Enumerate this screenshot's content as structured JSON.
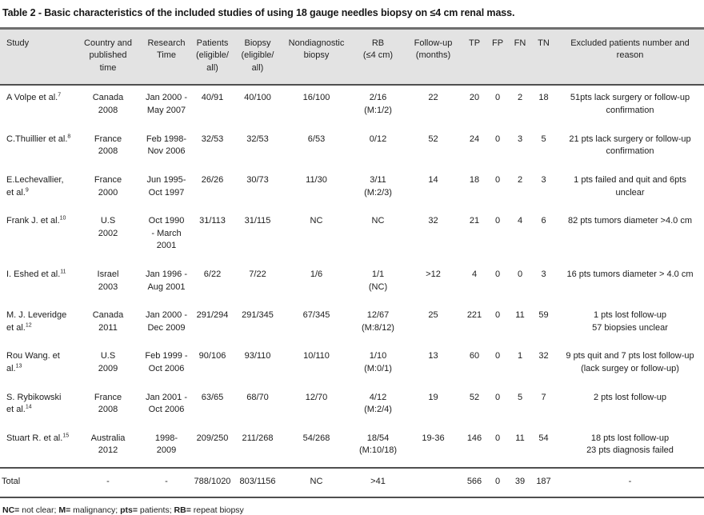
{
  "title": "Table 2 - Basic characteristics of the included studies of using 18 gauge needles biopsy on ≤4 cm renal mass.",
  "columns": [
    "Study",
    "Country and\npublished\ntime",
    "Research\nTime",
    "Patients\n(eligible/\nall)",
    "Biopsy\n(eligible/\nall)",
    "Nondiagnostic\nbiopsy",
    "RB\n(≤4 cm)",
    "Follow-up\n(months)",
    "TP",
    "FP",
    "FN",
    "TN",
    "Excluded patients number and\nreason"
  ],
  "rows": [
    {
      "study": "A Volpe et al.",
      "ref": "7",
      "country": "Canada\n2008",
      "research": "Jan 2000 -\nMay 2007",
      "patients": "40/91",
      "biopsy": "40/100",
      "nondiagnostic": "16/100",
      "rb": "2/16\n(M:1/2)",
      "followup": "22",
      "tp": "20",
      "fp": "0",
      "fn": "2",
      "tn": "18",
      "excluded": "51pts lack surgery or follow-up\nconfirmation"
    },
    {
      "study": "C.Thuillier et al.",
      "ref": "8",
      "country": "France\n2008",
      "research": "Feb 1998-\nNov 2006",
      "patients": "32/53",
      "biopsy": "32/53",
      "nondiagnostic": "6/53",
      "rb": "0/12",
      "followup": "52",
      "tp": "24",
      "fp": "0",
      "fn": "3",
      "tn": "5",
      "excluded": "21 pts lack surgery or follow-up\nconfirmation"
    },
    {
      "study": "E.Lechevallier,\net al.",
      "ref": "9",
      "country": "France\n2000",
      "research": "Jun 1995-\nOct 1997",
      "patients": "26/26",
      "biopsy": "30/73",
      "nondiagnostic": "11/30",
      "rb": "3/11\n(M:2/3)",
      "followup": "14",
      "tp": "18",
      "fp": "0",
      "fn": "2",
      "tn": "3",
      "excluded": "1 pts failed and quit and 6pts\nunclear"
    },
    {
      "study": "Frank J. et al.",
      "ref": "10",
      "country": "U.S\n2002",
      "research": "Oct 1990\n- March\n2001",
      "patients": "31/113",
      "biopsy": "31/115",
      "nondiagnostic": "NC",
      "rb": "NC",
      "followup": "32",
      "tp": "21",
      "fp": "0",
      "fn": "4",
      "tn": "6",
      "excluded": "82 pts tumors diameter >4.0 cm"
    },
    {
      "study": "I. Eshed et al.",
      "ref": "11",
      "country": "Israel\n2003",
      "research": "Jan 1996 -\nAug 2001",
      "patients": "6/22",
      "biopsy": "7/22",
      "nondiagnostic": "1/6",
      "rb": "1/1\n(NC)",
      "followup": ">12",
      "tp": "4",
      "fp": "0",
      "fn": "0",
      "tn": "3",
      "excluded": "16 pts tumors diameter > 4.0 cm"
    },
    {
      "study": "M. J. Leveridge\net al.",
      "ref": "12",
      "country": "Canada\n2011",
      "research": "Jan 2000 -\nDec 2009",
      "patients": "291/294",
      "biopsy": "291/345",
      "nondiagnostic": "67/345",
      "rb": "12/67\n(M:8/12)",
      "followup": "25",
      "tp": "221",
      "fp": "0",
      "fn": "11",
      "tn": "59",
      "excluded": "1 pts lost follow-up\n57 biopsies unclear"
    },
    {
      "study": "Rou Wang. et\nal.",
      "ref": "13",
      "country": "U.S\n2009",
      "research": "Feb 1999 -\nOct 2006",
      "patients": "90/106",
      "biopsy": "93/110",
      "nondiagnostic": "10/110",
      "rb": "1/10\n(M:0/1)",
      "followup": "13",
      "tp": "60",
      "fp": "0",
      "fn": "1",
      "tn": "32",
      "excluded": "9 pts quit and 7 pts lost follow-up\n(lack surgey or follow-up)"
    },
    {
      "study": "S. Rybikowski\net al.",
      "ref": "14",
      "country": "France\n2008",
      "research": "Jan 2001 -\nOct 2006",
      "patients": "63/65",
      "biopsy": "68/70",
      "nondiagnostic": "12/70",
      "rb": "4/12\n(M:2/4)",
      "followup": "19",
      "tp": "52",
      "fp": "0",
      "fn": "5",
      "tn": "7",
      "excluded": "2 pts lost follow-up"
    },
    {
      "study": "Stuart R. et al.",
      "ref": "15",
      "country": "Australia\n2012",
      "research": "1998-\n2009",
      "patients": "209/250",
      "biopsy": "211/268",
      "nondiagnostic": "54/268",
      "rb": "18/54\n(M:10/18)",
      "followup": "19-36",
      "tp": "146",
      "fp": "0",
      "fn": "11",
      "tn": "54",
      "excluded": "18 pts lost follow-up\n23 pts diagnosis failed"
    }
  ],
  "total": {
    "study": "Total",
    "ref": "",
    "country": "-",
    "research": "-",
    "patients": "788/1020",
    "biopsy": "803/1156",
    "nondiagnostic": "NC",
    "rb": ">41",
    "followup": "",
    "tp": "566",
    "fp": "0",
    "fn": "39",
    "tn": "187",
    "excluded": "-"
  },
  "footnote": [
    {
      "term": "NC=",
      "desc": " not clear; "
    },
    {
      "term": "M=",
      "desc": " malignancy; "
    },
    {
      "term": "pts=",
      "desc": " patients; "
    },
    {
      "term": "RB=",
      "desc": " repeat biopsy"
    }
  ]
}
